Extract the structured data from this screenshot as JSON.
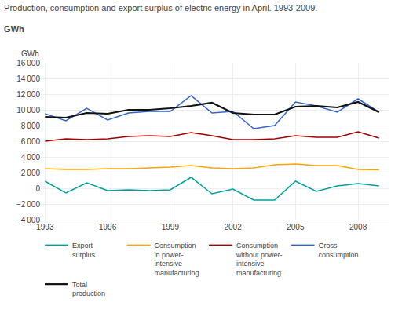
{
  "chart_data": {
    "type": "line",
    "title": "Production, consumption and export surplus of electric energy in April. 1993-2009.",
    "subtitle": "GWh",
    "ylabel": "GWh",
    "x": [
      1993,
      1994,
      1995,
      1996,
      1997,
      1998,
      1999,
      2000,
      2001,
      2002,
      2003,
      2004,
      2005,
      2006,
      2007,
      2008,
      2009
    ],
    "series": [
      {
        "name": "Export\nsurplus",
        "color": "#00A0A0",
        "values": [
          900,
          -600,
          700,
          -300,
          -200,
          -300,
          -200,
          1400,
          -700,
          -100,
          -1500,
          -1500,
          900,
          -400,
          300,
          600,
          300
        ]
      },
      {
        "name": "Consumption\nin power-\nintensive\nmanufacturing",
        "color": "#FFA500",
        "values": [
          2500,
          2400,
          2400,
          2500,
          2500,
          2600,
          2700,
          2900,
          2600,
          2500,
          2600,
          3000,
          3100,
          2900,
          2900,
          2400,
          2350
        ]
      },
      {
        "name": "Consumption\nwithout power-\nintensive\nmanufacturing",
        "color": "#A00000",
        "values": [
          6000,
          6300,
          6200,
          6300,
          6600,
          6700,
          6600,
          7100,
          6700,
          6200,
          6200,
          6300,
          6700,
          6500,
          6500,
          7200,
          6400
        ]
      },
      {
        "name": "Gross\nconsumption",
        "color": "#3366CC",
        "values": [
          9500,
          8600,
          10200,
          8700,
          9600,
          9800,
          9800,
          11800,
          9600,
          9800,
          7600,
          8000,
          11000,
          10500,
          9700,
          11400,
          9700
        ]
      },
      {
        "name": "Total\nproduction",
        "color": "#111111",
        "values": [
          9100,
          9000,
          9600,
          9500,
          10000,
          10000,
          10200,
          10500,
          10900,
          9600,
          9400,
          9400,
          10400,
          10500,
          10300,
          11000,
          9700
        ]
      }
    ],
    "xlim": [
      1992.8,
      2009.5
    ],
    "xticks": [
      1993,
      1996,
      1999,
      2002,
      2005,
      2008
    ],
    "ylim": [
      -4000,
      16000
    ],
    "yticks": [
      {
        "value": -4000,
        "label": "−4 000"
      },
      {
        "value": -2000,
        "label": "−2 000"
      },
      0,
      {
        "value": 2000,
        "label": "2 000"
      },
      {
        "value": 4000,
        "label": "4 000"
      },
      {
        "value": 6000,
        "label": "6 000"
      },
      {
        "value": 8000,
        "label": "8 000"
      },
      {
        "value": 10000,
        "label": "10 000"
      },
      {
        "value": 12000,
        "label": "12 000"
      },
      {
        "value": 14000,
        "label": "14 000"
      },
      {
        "value": 16000,
        "label": "16 000"
      }
    ],
    "grid": true,
    "legend": "bottom"
  }
}
